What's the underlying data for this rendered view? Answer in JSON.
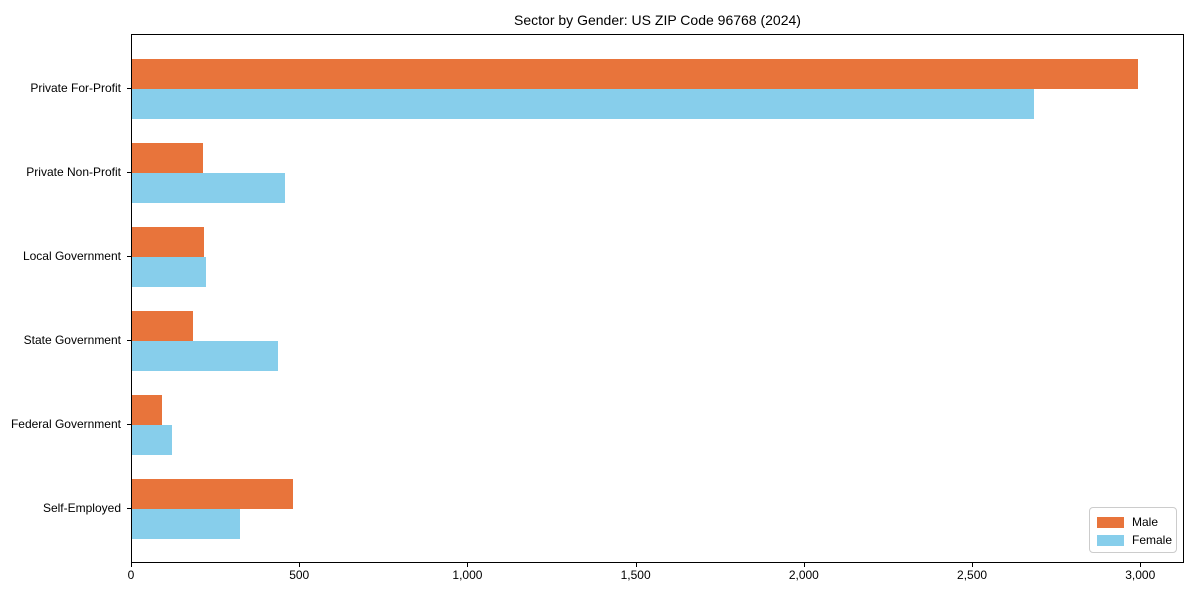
{
  "figure": {
    "background": "#ffffff"
  },
  "chart_data": {
    "type": "bar",
    "orientation": "horizontal",
    "title": "Sector by Gender: US ZIP Code 96768 (2024)",
    "xlabel": "",
    "ylabel": "",
    "categories": [
      "Private For-Profit",
      "Private Non-Profit",
      "Local Government",
      "State Government",
      "Federal Government",
      "Self-Employed"
    ],
    "series": [
      {
        "name": "Male",
        "color": "#e8743b",
        "values": [
          2990,
          210,
          215,
          180,
          90,
          480
        ]
      },
      {
        "name": "Female",
        "color": "#87ceeb",
        "values": [
          2680,
          455,
          220,
          435,
          120,
          320
        ]
      }
    ],
    "xlim": [
      0,
      3130
    ],
    "xticks": {
      "values": [
        0,
        500,
        1000,
        1500,
        2000,
        2500,
        3000
      ],
      "labels": [
        "0",
        "500",
        "1,000",
        "1,500",
        "2,000",
        "2,500",
        "3,000"
      ]
    },
    "grid": false,
    "legend": {
      "position": "lower right",
      "entries": [
        "Male",
        "Female"
      ]
    }
  }
}
